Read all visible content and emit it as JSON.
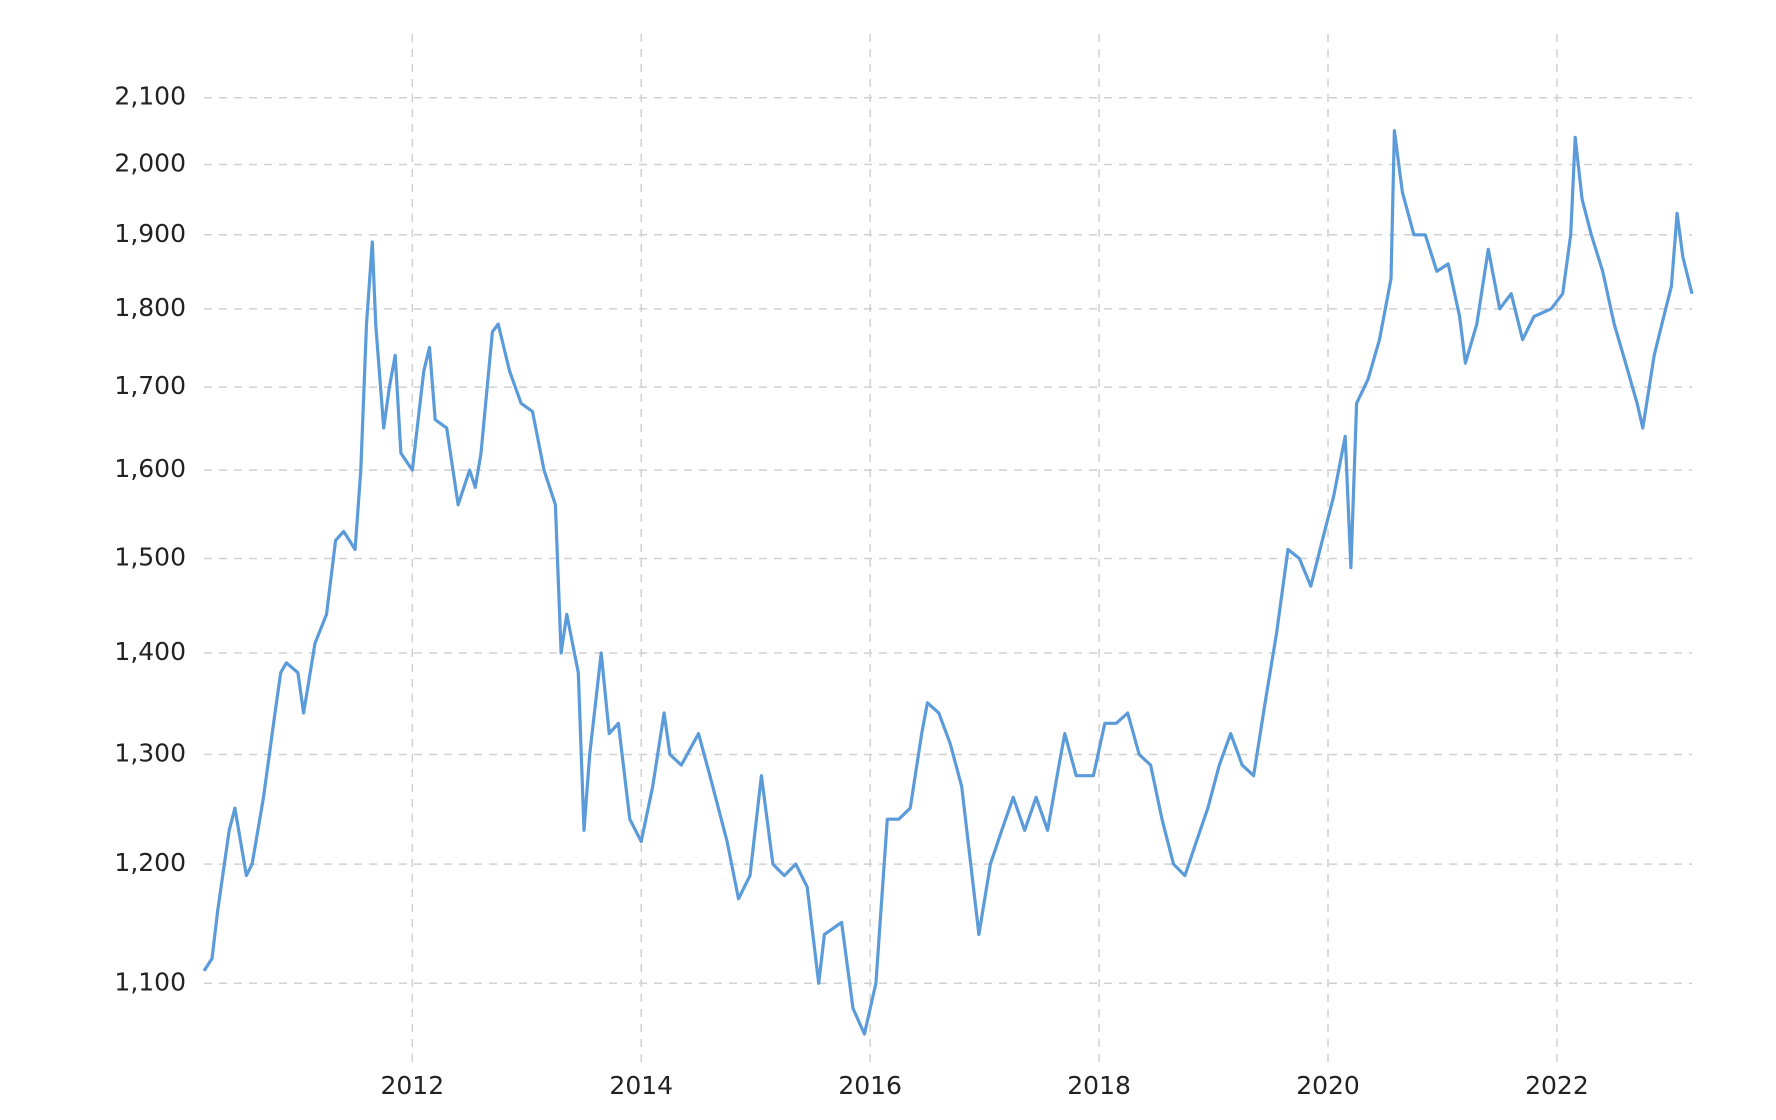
{
  "chart_data": {
    "type": "line",
    "color": "#5b9bd9",
    "log_y": true,
    "grid": true,
    "x": [
      2010.18,
      2010.25,
      2010.3,
      2010.4,
      2010.45,
      2010.55,
      2010.6,
      2010.7,
      2010.8,
      2010.85,
      2010.9,
      2011.0,
      2011.05,
      2011.15,
      2011.25,
      2011.33,
      2011.4,
      2011.5,
      2011.55,
      2011.6,
      2011.65,
      2011.68,
      2011.75,
      2011.8,
      2011.85,
      2011.9,
      2012.0,
      2012.1,
      2012.15,
      2012.2,
      2012.3,
      2012.4,
      2012.5,
      2012.55,
      2012.6,
      2012.7,
      2012.75,
      2012.85,
      2012.95,
      2013.05,
      2013.15,
      2013.25,
      2013.3,
      2013.35,
      2013.45,
      2013.5,
      2013.55,
      2013.65,
      2013.72,
      2013.8,
      2013.9,
      2014.0,
      2014.1,
      2014.2,
      2014.25,
      2014.35,
      2014.5,
      2014.6,
      2014.75,
      2014.85,
      2014.95,
      2015.05,
      2015.15,
      2015.25,
      2015.35,
      2015.45,
      2015.55,
      2015.6,
      2015.75,
      2015.85,
      2015.95,
      2016.05,
      2016.15,
      2016.25,
      2016.35,
      2016.45,
      2016.5,
      2016.6,
      2016.7,
      2016.8,
      2016.95,
      2017.05,
      2017.15,
      2017.25,
      2017.35,
      2017.45,
      2017.55,
      2017.65,
      2017.7,
      2017.8,
      2017.95,
      2018.05,
      2018.15,
      2018.25,
      2018.35,
      2018.45,
      2018.55,
      2018.65,
      2018.75,
      2018.85,
      2018.95,
      2019.05,
      2019.15,
      2019.25,
      2019.35,
      2019.45,
      2019.55,
      2019.65,
      2019.75,
      2019.85,
      2019.95,
      2020.05,
      2020.15,
      2020.2,
      2020.25,
      2020.35,
      2020.45,
      2020.55,
      2020.58,
      2020.65,
      2020.75,
      2020.85,
      2020.95,
      2021.05,
      2021.15,
      2021.2,
      2021.3,
      2021.4,
      2021.5,
      2021.6,
      2021.7,
      2021.8,
      2021.95,
      2022.05,
      2022.12,
      2022.16,
      2022.22,
      2022.3,
      2022.4,
      2022.5,
      2022.6,
      2022.7,
      2022.75,
      2022.85,
      2022.95,
      2023.0,
      2023.05,
      2023.1,
      2023.18
    ],
    "values": [
      1110,
      1120,
      1160,
      1230,
      1250,
      1190,
      1200,
      1260,
      1340,
      1380,
      1390,
      1380,
      1340,
      1410,
      1440,
      1520,
      1530,
      1510,
      1600,
      1780,
      1890,
      1780,
      1650,
      1700,
      1740,
      1620,
      1600,
      1720,
      1750,
      1660,
      1650,
      1560,
      1600,
      1580,
      1620,
      1770,
      1780,
      1720,
      1680,
      1670,
      1600,
      1560,
      1400,
      1440,
      1380,
      1230,
      1300,
      1400,
      1320,
      1330,
      1240,
      1220,
      1270,
      1340,
      1300,
      1290,
      1320,
      1280,
      1220,
      1170,
      1190,
      1280,
      1200,
      1190,
      1200,
      1180,
      1100,
      1140,
      1150,
      1080,
      1060,
      1100,
      1240,
      1240,
      1250,
      1320,
      1350,
      1340,
      1310,
      1270,
      1140,
      1200,
      1230,
      1260,
      1230,
      1260,
      1230,
      1290,
      1320,
      1280,
      1280,
      1330,
      1330,
      1340,
      1300,
      1290,
      1240,
      1200,
      1190,
      1220,
      1250,
      1290,
      1320,
      1290,
      1280,
      1350,
      1420,
      1510,
      1500,
      1470,
      1520,
      1570,
      1640,
      1490,
      1680,
      1710,
      1760,
      1840,
      2050,
      1960,
      1900,
      1900,
      1850,
      1860,
      1790,
      1730,
      1780,
      1880,
      1800,
      1820,
      1760,
      1790,
      1800,
      1820,
      1900,
      2040,
      1950,
      1900,
      1850,
      1780,
      1730,
      1680,
      1650,
      1740,
      1800,
      1830,
      1930,
      1870,
      1820
    ],
    "xlim": [
      2010.18,
      2023.18
    ],
    "xticks": [
      2012,
      2014,
      2016,
      2018,
      2020,
      2022
    ],
    "ylim": [
      1050,
      2200
    ],
    "yticks": [
      {
        "value": 1100,
        "label": "1,100"
      },
      {
        "value": 1200,
        "label": "1,200"
      },
      {
        "value": 1300,
        "label": "1,300"
      },
      {
        "value": 1400,
        "label": "1,400"
      },
      {
        "value": 1500,
        "label": "1,500"
      },
      {
        "value": 1600,
        "label": "1,600"
      },
      {
        "value": 1700,
        "label": "1,700"
      },
      {
        "value": 1800,
        "label": "1,800"
      },
      {
        "value": 1900,
        "label": "1,900"
      },
      {
        "value": 2000,
        "label": "2,000"
      },
      {
        "value": 2100,
        "label": "2,100"
      }
    ]
  }
}
